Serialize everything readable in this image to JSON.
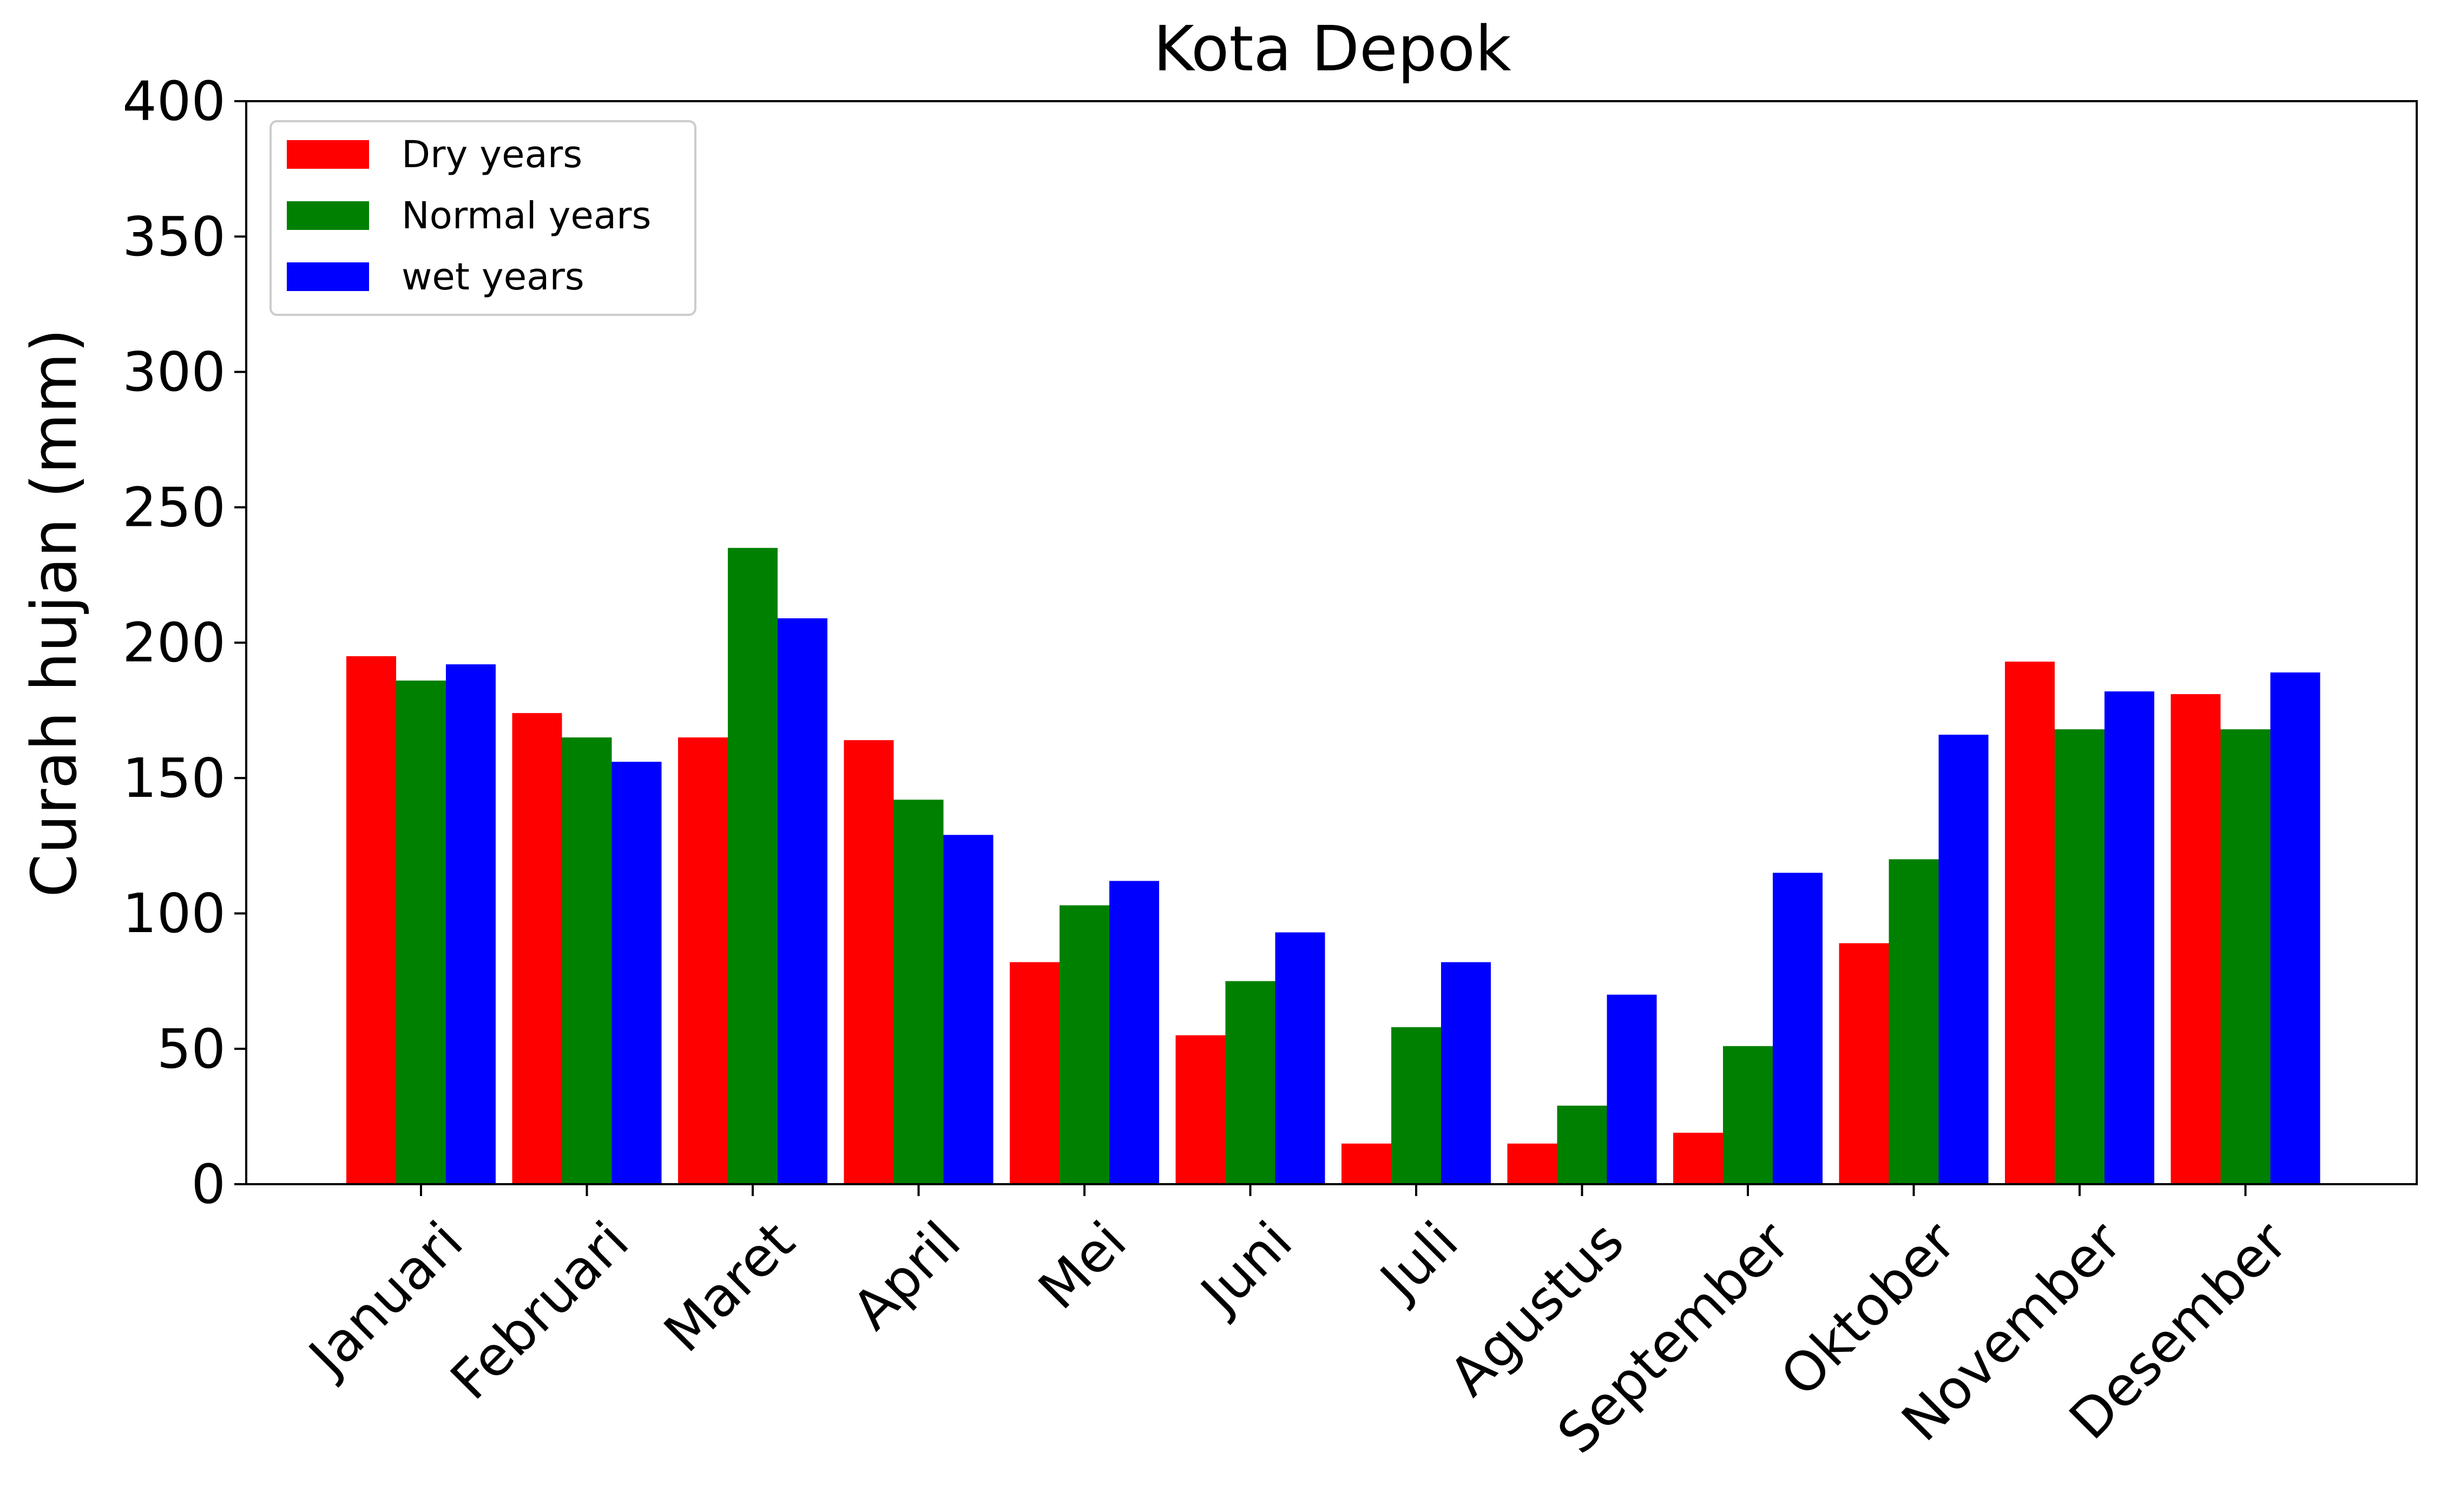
{
  "chart_data": {
    "type": "bar",
    "title": "Kota Depok",
    "xlabel": "",
    "ylabel": "Curah hujan (mm)",
    "ylim": [
      0,
      400
    ],
    "yticks": [
      0,
      50,
      100,
      150,
      200,
      250,
      300,
      350,
      400
    ],
    "grid": false,
    "legend_position": "top-left",
    "categories": [
      "Januari",
      "Februari",
      "Maret",
      "April",
      "Mei",
      "Juni",
      "Juli",
      "Agustus",
      "September",
      "Oktober",
      "November",
      "Desember"
    ],
    "series": [
      {
        "name": "Dry years",
        "color": "#ff0000",
        "values": [
          195,
          174,
          165,
          164,
          82,
          55,
          15,
          15,
          19,
          89,
          193,
          181
        ]
      },
      {
        "name": "Normal years",
        "color": "#008000",
        "values": [
          186,
          165,
          235,
          142,
          103,
          75,
          58,
          29,
          51,
          120,
          168,
          168
        ]
      },
      {
        "name": "wet years",
        "color": "#0000ff",
        "values": [
          192,
          156,
          209,
          129,
          112,
          93,
          82,
          70,
          115,
          166,
          182,
          189
        ]
      }
    ]
  }
}
